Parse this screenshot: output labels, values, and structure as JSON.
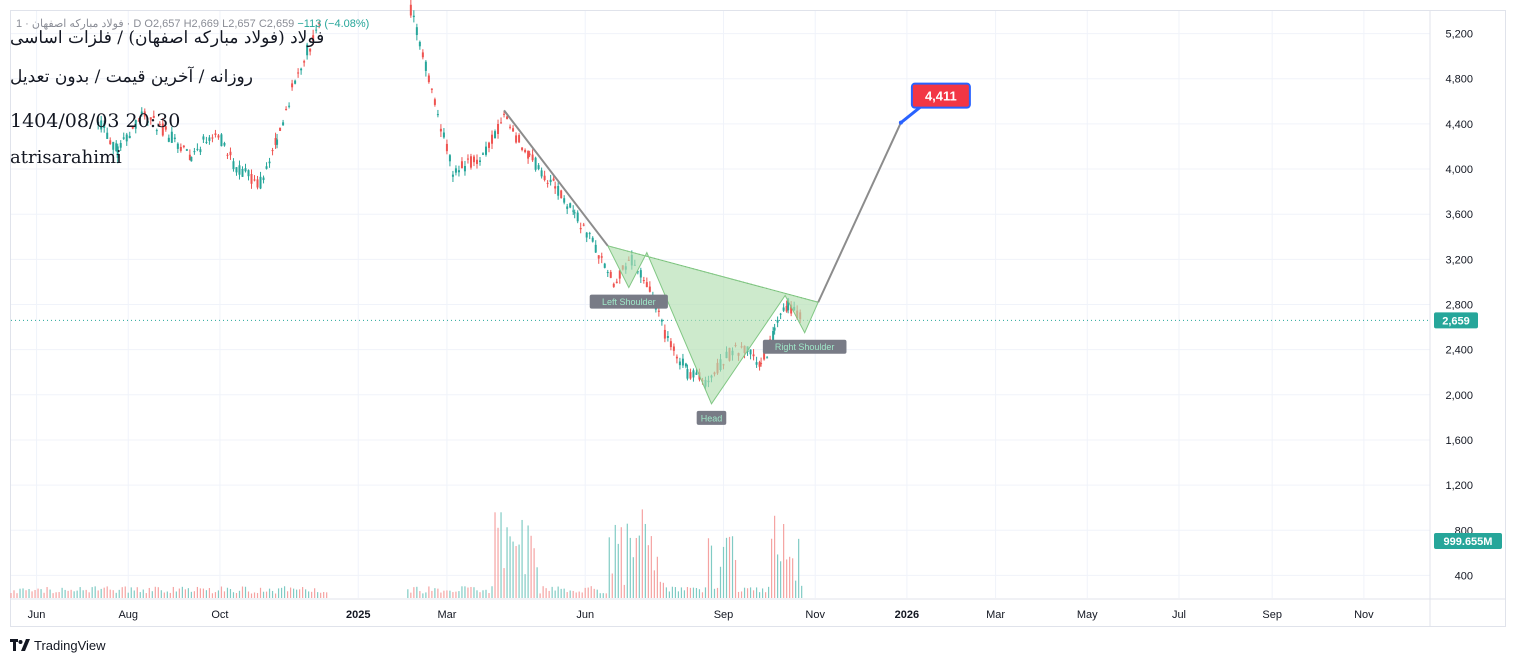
{
  "header": {
    "legend": {
      "symbol": "فولاد مبارکه اصفهان · 1 · D",
      "open": "O2,657",
      "high": "H2,669",
      "low": "L2,657",
      "close": "C2,659",
      "change": "−113 (−4.08%)"
    },
    "title": "فولاد (فولاد مبارکه اصفهان) / فلزات اساسی",
    "subtitle": "روزانه / آخرین قیمت / بدون تعدیل",
    "timestamp": "1404/08/03 20:30",
    "author": "atrisarahimi"
  },
  "branding": {
    "name": "TradingView"
  },
  "colors": {
    "up": "#26a69a",
    "down": "#ef5350",
    "pattern_fill": "#b2dfb0",
    "target_badge": "#f23645",
    "target_border": "#2962ff",
    "grid": "#f0f3fa"
  },
  "chart_data": {
    "type": "candlestick",
    "ylim": [
      200,
      5400
    ],
    "y_ticks": [
      400,
      800,
      1200,
      1600,
      2000,
      2400,
      2800,
      3200,
      3600,
      4000,
      4400,
      4800,
      5200
    ],
    "x_ticks": [
      {
        "label": "Jun",
        "date": "2024-06-01"
      },
      {
        "label": "Aug",
        "date": "2024-08-01"
      },
      {
        "label": "Oct",
        "date": "2024-10-01"
      },
      {
        "label": "2025",
        "date": "2025-01-01"
      },
      {
        "label": "Mar",
        "date": "2025-03-01"
      },
      {
        "label": "Jun",
        "date": "2025-06-01"
      },
      {
        "label": "Sep",
        "date": "2025-09-01"
      },
      {
        "label": "Nov",
        "date": "2025-11-01"
      },
      {
        "label": "2026",
        "date": "2026-01-01"
      },
      {
        "label": "Mar",
        "date": "2026-03-01"
      },
      {
        "label": "May",
        "date": "2026-05-01"
      },
      {
        "label": "Jul",
        "date": "2026-07-01"
      },
      {
        "label": "Sep",
        "date": "2026-09-01"
      },
      {
        "label": "Nov",
        "date": "2026-11-01"
      }
    ],
    "last_price": {
      "value": 2659,
      "label": "2,659"
    },
    "volume_label": "999.655M",
    "price_path": [
      {
        "date": "2024-07-12",
        "value": 4450
      },
      {
        "date": "2024-07-25",
        "value": 4150
      },
      {
        "date": "2024-08-10",
        "value": 4500
      },
      {
        "date": "2024-08-28",
        "value": 4300
      },
      {
        "date": "2024-09-12",
        "value": 4120
      },
      {
        "date": "2024-09-28",
        "value": 4350
      },
      {
        "date": "2024-10-12",
        "value": 4000
      },
      {
        "date": "2024-10-28",
        "value": 3880
      },
      {
        "date": "2024-11-08",
        "value": 4250
      },
      {
        "date": "2024-11-18",
        "value": 4700
      },
      {
        "date": "2024-11-28",
        "value": 5050
      },
      {
        "date": "2024-12-08",
        "value": 5300
      },
      {
        "date": "2025-02-05",
        "value": 5400
      },
      {
        "date": "2025-03-05",
        "value": 3980
      },
      {
        "date": "2025-03-25",
        "value": 4120
      },
      {
        "date": "2025-04-08",
        "value": 4450
      },
      {
        "date": "2025-04-25",
        "value": 4100
      },
      {
        "date": "2025-05-12",
        "value": 3850
      },
      {
        "date": "2025-05-25",
        "value": 3600
      },
      {
        "date": "2025-06-08",
        "value": 3300
      },
      {
        "date": "2025-06-20",
        "value": 2980
      },
      {
        "date": "2025-07-02",
        "value": 3200
      },
      {
        "date": "2025-07-14",
        "value": 2900
      },
      {
        "date": "2025-07-26",
        "value": 2480
      },
      {
        "date": "2025-08-08",
        "value": 2200
      },
      {
        "date": "2025-08-22",
        "value": 2120
      },
      {
        "date": "2025-09-03",
        "value": 2350
      },
      {
        "date": "2025-09-15",
        "value": 2420
      },
      {
        "date": "2025-09-26",
        "value": 2250
      },
      {
        "date": "2025-10-05",
        "value": 2550
      },
      {
        "date": "2025-10-14",
        "value": 2800
      },
      {
        "date": "2025-10-24",
        "value": 2650
      }
    ],
    "pattern": {
      "name": "head-and-shoulders (inverse)",
      "points": [
        {
          "date": "2025-06-16",
          "value": 3320
        },
        {
          "date": "2025-06-30",
          "value": 2950
        },
        {
          "date": "2025-07-12",
          "value": 3260
        },
        {
          "date": "2025-08-24",
          "value": 1920
        },
        {
          "date": "2025-10-12",
          "value": 2880
        },
        {
          "date": "2025-10-25",
          "value": 2550
        },
        {
          "date": "2025-11-03",
          "value": 2820
        }
      ],
      "labels": [
        {
          "text": "Left Shoulder",
          "date": "2025-06-30",
          "value": 2950
        },
        {
          "text": "Head",
          "date": "2025-08-24",
          "value": 1920
        },
        {
          "text": "Right Shoulder",
          "date": "2025-10-25",
          "value": 2550
        }
      ]
    },
    "trend_lines": [
      {
        "from": {
          "date": "2025-04-08",
          "value": 4520
        },
        "to": {
          "date": "2025-06-16",
          "value": 3320
        }
      },
      {
        "from": {
          "date": "2025-11-03",
          "value": 2820
        },
        "to": {
          "date": "2025-12-28",
          "value": 4411
        }
      }
    ],
    "target": {
      "date": "2025-12-28",
      "value": 4411,
      "label": "4,411"
    },
    "volume_ylim": [
      0,
      5300
    ]
  }
}
